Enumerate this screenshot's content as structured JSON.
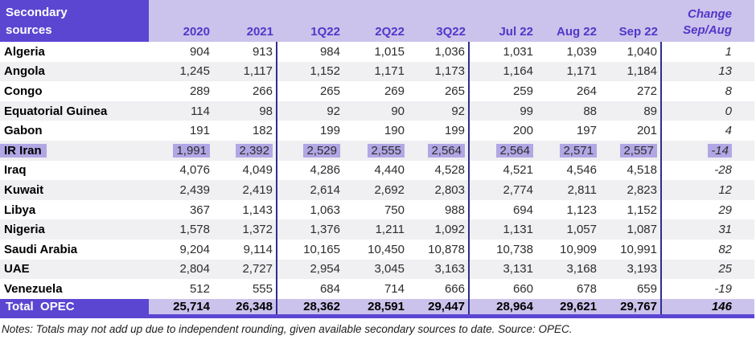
{
  "header": {
    "corner_line1": "Secondary",
    "corner_line2": "sources",
    "change_line1": "Change",
    "change_line2": "Sep/Aug"
  },
  "chart_data": {
    "type": "table",
    "title": "Secondary sources",
    "columns": [
      "2020",
      "2021",
      "1Q22",
      "2Q22",
      "3Q22",
      "Jul 22",
      "Aug 22",
      "Sep 22",
      "Change Sep/Aug"
    ],
    "rows": [
      {
        "country": "Algeria",
        "values": [
          "904",
          "913",
          "984",
          "1,015",
          "1,036",
          "1,031",
          "1,039",
          "1,040"
        ],
        "change": "1",
        "highlight": false
      },
      {
        "country": "Angola",
        "values": [
          "1,245",
          "1,117",
          "1,152",
          "1,171",
          "1,173",
          "1,164",
          "1,171",
          "1,184"
        ],
        "change": "13",
        "highlight": false
      },
      {
        "country": "Congo",
        "values": [
          "289",
          "266",
          "265",
          "269",
          "265",
          "259",
          "264",
          "272"
        ],
        "change": "8",
        "highlight": false
      },
      {
        "country": "Equatorial Guinea",
        "values": [
          "114",
          "98",
          "92",
          "90",
          "92",
          "99",
          "88",
          "89"
        ],
        "change": "0",
        "highlight": false
      },
      {
        "country": "Gabon",
        "values": [
          "191",
          "182",
          "199",
          "190",
          "199",
          "200",
          "197",
          "201"
        ],
        "change": "4",
        "highlight": false
      },
      {
        "country": "IR Iran",
        "values": [
          "1,991",
          "2,392",
          "2,529",
          "2,555",
          "2,564",
          "2,564",
          "2,571",
          "2,557"
        ],
        "change": "-14",
        "highlight": true
      },
      {
        "country": "Iraq",
        "values": [
          "4,076",
          "4,049",
          "4,286",
          "4,440",
          "4,528",
          "4,521",
          "4,546",
          "4,518"
        ],
        "change": "-28",
        "highlight": false
      },
      {
        "country": "Kuwait",
        "values": [
          "2,439",
          "2,419",
          "2,614",
          "2,692",
          "2,803",
          "2,774",
          "2,811",
          "2,823"
        ],
        "change": "12",
        "highlight": false
      },
      {
        "country": "Libya",
        "values": [
          "367",
          "1,143",
          "1,063",
          "750",
          "988",
          "694",
          "1,123",
          "1,152"
        ],
        "change": "29",
        "highlight": false
      },
      {
        "country": "Nigeria",
        "values": [
          "1,578",
          "1,372",
          "1,376",
          "1,211",
          "1,092",
          "1,131",
          "1,057",
          "1,087"
        ],
        "change": "31",
        "highlight": false
      },
      {
        "country": "Saudi Arabia",
        "values": [
          "9,204",
          "9,114",
          "10,165",
          "10,450",
          "10,878",
          "10,738",
          "10,909",
          "10,991"
        ],
        "change": "82",
        "highlight": false
      },
      {
        "country": "UAE",
        "values": [
          "2,804",
          "2,727",
          "2,954",
          "3,045",
          "3,163",
          "3,131",
          "3,168",
          "3,193"
        ],
        "change": "25",
        "highlight": false
      },
      {
        "country": "Venezuela",
        "values": [
          "512",
          "555",
          "684",
          "714",
          "666",
          "660",
          "678",
          "659"
        ],
        "change": "-19",
        "highlight": false
      }
    ],
    "total": {
      "label": "Total  OPEC",
      "values": [
        "25,714",
        "26,348",
        "28,362",
        "28,591",
        "29,447",
        "28,964",
        "29,621",
        "29,767"
      ],
      "change": "146"
    }
  },
  "notes": "Notes: Totals may not add up due to independent rounding, given available secondary sources to date. Source: OPEC.",
  "colors": {
    "purple": "#5b46d2",
    "lavender": "#cbc3ec",
    "stripe": "#f0eff2",
    "hl": "#b2a7e5",
    "line": "#2e2e8e",
    "hdr-text": "#5336c8",
    "num-text": "#2d2d2d"
  }
}
